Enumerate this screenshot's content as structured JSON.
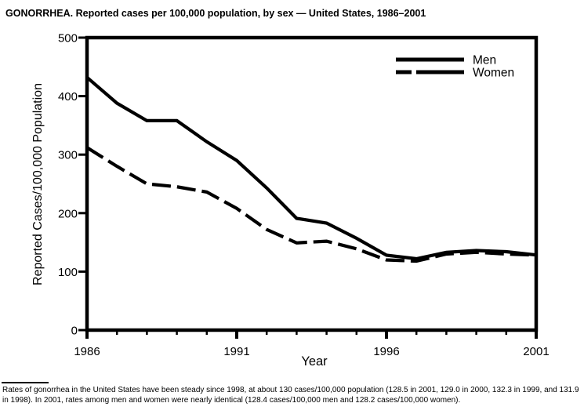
{
  "title": "GONORRHEA. Reported cases per 100,000 population, by sex — United States, 1986–2001",
  "footnote": "Rates of gonorrhea in the United States have been steady since 1998, at about 130 cases/100,000 population (128.5 in 2001, 129.0 in 2000, 132.3 in 1999, and 131.9 in 1998). In 2001, rates among men and women were nearly identical (128.4 cases/100,000 men and 128.2 cases/100,000 women).",
  "colors": {
    "ink": "#000000",
    "background": "#ffffff"
  },
  "chart_data": {
    "type": "line",
    "title": "",
    "xlabel": "Year",
    "ylabel": "Reported Cases/100,000 Population",
    "x": [
      1986,
      1987,
      1988,
      1989,
      1990,
      1991,
      1992,
      1993,
      1994,
      1995,
      1996,
      1997,
      1998,
      1999,
      2000,
      2001
    ],
    "series": [
      {
        "name": "Men",
        "line_style": "solid",
        "values": [
          432,
          388,
          358,
          358,
          322,
          290,
          243,
          191,
          183,
          157,
          128,
          122,
          133,
          136,
          134,
          128.4
        ]
      },
      {
        "name": "Women",
        "line_style": "dashed",
        "values": [
          312,
          280,
          250,
          245,
          236,
          208,
          172,
          149,
          152,
          139,
          120,
          118,
          130,
          133,
          130,
          128.2
        ]
      }
    ],
    "xlim": [
      1986,
      2001
    ],
    "ylim": [
      0,
      500
    ],
    "yticks": [
      0,
      100,
      200,
      300,
      400,
      500
    ],
    "xticks_major": [
      1986,
      1991,
      1996,
      2001
    ],
    "xticks_minor_interval_years": 1,
    "grid": false,
    "legend_position": "top-right"
  }
}
